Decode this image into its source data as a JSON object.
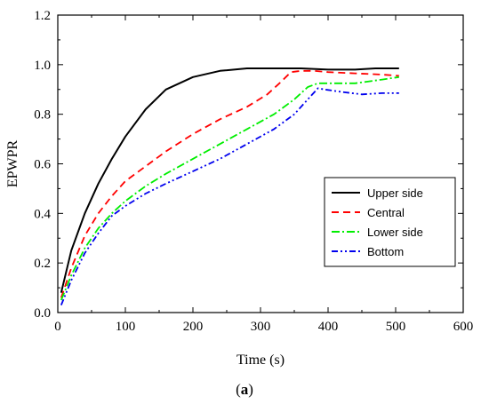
{
  "caption": {
    "open": "(",
    "letter": "a",
    "close": ")"
  },
  "chart_data": {
    "type": "line",
    "xlabel": "Time (s)",
    "ylabel": "EPWPR",
    "xlim": [
      0,
      600
    ],
    "ylim": [
      0,
      1.2
    ],
    "xticks": [
      "0",
      "100",
      "200",
      "300",
      "400",
      "500",
      "600"
    ],
    "yticks": [
      "0.0",
      "0.2",
      "0.4",
      "0.6",
      "0.8",
      "1.0",
      "1.2"
    ],
    "grid": false,
    "legend_position": "right",
    "series": [
      {
        "name": "Upper side",
        "color": "#000000",
        "dash": "solid",
        "x": [
          5,
          20,
          40,
          60,
          80,
          100,
          130,
          160,
          200,
          240,
          280,
          320,
          360,
          400,
          440,
          470,
          505
        ],
        "y": [
          0.08,
          0.25,
          0.4,
          0.52,
          0.62,
          0.71,
          0.82,
          0.9,
          0.95,
          0.975,
          0.985,
          0.985,
          0.985,
          0.98,
          0.98,
          0.985,
          0.985
        ]
      },
      {
        "name": "Central",
        "color": "#ff0000",
        "dash": "dash",
        "x": [
          5,
          20,
          40,
          60,
          80,
          100,
          130,
          160,
          200,
          240,
          280,
          310,
          330,
          345,
          360,
          380,
          400,
          440,
          480,
          505
        ],
        "y": [
          0.06,
          0.18,
          0.31,
          0.4,
          0.47,
          0.53,
          0.59,
          0.65,
          0.72,
          0.78,
          0.83,
          0.88,
          0.93,
          0.97,
          0.975,
          0.975,
          0.97,
          0.965,
          0.96,
          0.955
        ]
      },
      {
        "name": "Lower side",
        "color": "#00ee00",
        "dash": "dashdot",
        "x": [
          5,
          20,
          40,
          60,
          80,
          100,
          130,
          160,
          200,
          240,
          280,
          320,
          350,
          370,
          385,
          400,
          440,
          480,
          505
        ],
        "y": [
          0.05,
          0.15,
          0.26,
          0.34,
          0.4,
          0.45,
          0.51,
          0.56,
          0.62,
          0.68,
          0.74,
          0.8,
          0.86,
          0.91,
          0.925,
          0.925,
          0.925,
          0.94,
          0.95
        ]
      },
      {
        "name": "Bottom",
        "color": "#0000ee",
        "dash": "dashdotdot",
        "x": [
          5,
          20,
          40,
          60,
          80,
          100,
          130,
          160,
          200,
          240,
          280,
          320,
          350,
          370,
          385,
          395,
          420,
          450,
          480,
          505
        ],
        "y": [
          0.03,
          0.13,
          0.24,
          0.32,
          0.39,
          0.43,
          0.48,
          0.52,
          0.57,
          0.62,
          0.68,
          0.74,
          0.8,
          0.86,
          0.905,
          0.9,
          0.89,
          0.88,
          0.885,
          0.885
        ]
      }
    ]
  }
}
